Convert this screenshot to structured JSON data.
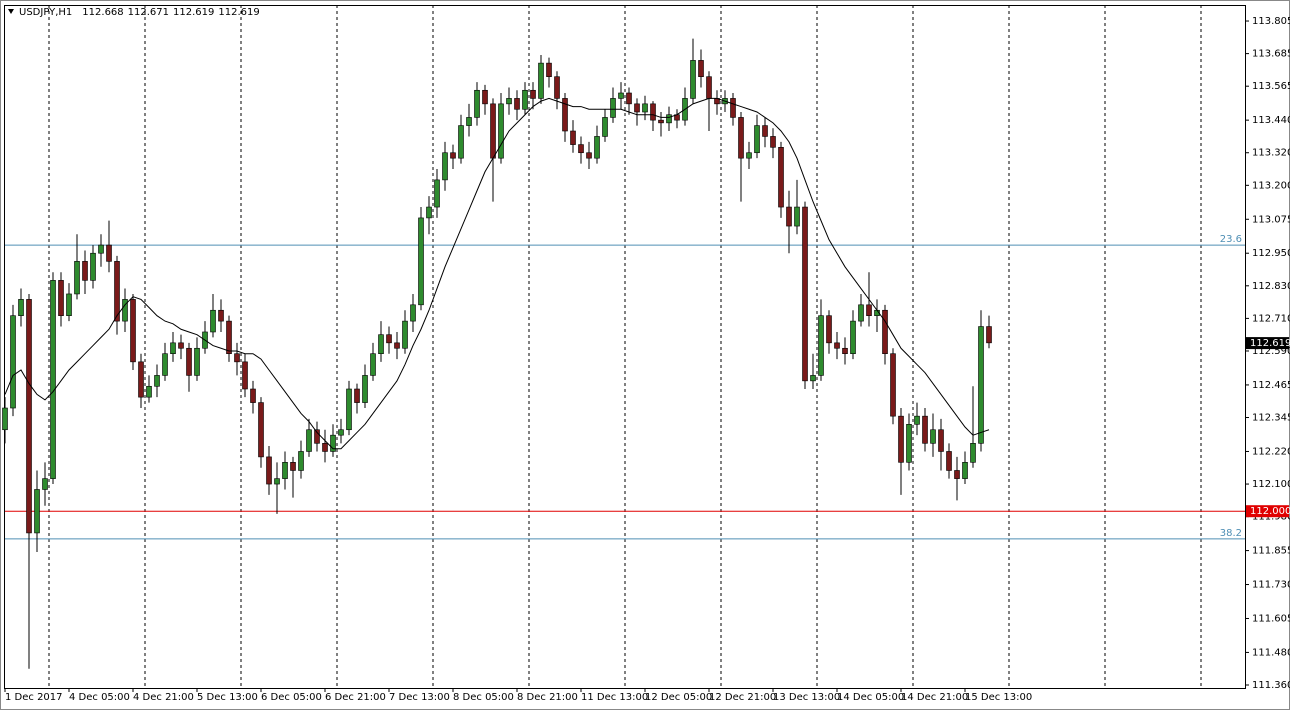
{
  "chart_data": {
    "type": "candlestick",
    "symbol": "USDJPY,H1",
    "header_values": [
      112.668,
      112.671,
      112.619,
      112.619
    ],
    "categories": [
      "1 Dec 2017",
      null,
      null,
      null,
      null,
      null,
      null,
      null,
      "4 Dec 05:00",
      null,
      null,
      null,
      null,
      null,
      null,
      null,
      "4 Dec 21:00",
      null,
      null,
      null,
      null,
      null,
      null,
      null,
      "5 Dec 13:00",
      null,
      null,
      null,
      null,
      null,
      null,
      null,
      "6 Dec 05:00",
      null,
      null,
      null,
      null,
      null,
      null,
      null,
      "6 Dec 21:00",
      null,
      null,
      null,
      null,
      null,
      null,
      null,
      "7 Dec 13:00",
      null,
      null,
      null,
      null,
      null,
      null,
      null,
      "8 Dec 05:00",
      null,
      null,
      null,
      null,
      null,
      null,
      null,
      "8 Dec 21:00",
      null,
      null,
      null,
      null,
      null,
      null,
      null,
      "11 Dec 13:00",
      null,
      null,
      null,
      null,
      null,
      null,
      null,
      "12 Dec 05:00",
      null,
      null,
      null,
      null,
      null,
      null,
      null,
      "12 Dec 21:00",
      null,
      null,
      null,
      null,
      null,
      null,
      null,
      "13 Dec 13:00",
      null,
      null,
      null,
      null,
      null,
      null,
      null,
      "14 Dec 05:00",
      null,
      null,
      null,
      null,
      null,
      null,
      null,
      "14 Dec 21:00",
      null,
      null,
      null,
      null,
      null,
      null,
      null,
      "15 Dec 13:00",
      null,
      null,
      null
    ],
    "ohlc": [
      [
        112.3,
        112.42,
        112.25,
        112.38
      ],
      [
        112.38,
        112.76,
        112.35,
        112.72
      ],
      [
        112.72,
        112.82,
        112.68,
        112.78
      ],
      [
        112.78,
        112.8,
        111.42,
        111.92
      ],
      [
        111.92,
        112.15,
        111.85,
        112.08
      ],
      [
        112.08,
        112.18,
        112.02,
        112.12
      ],
      [
        112.12,
        112.88,
        112.1,
        112.85
      ],
      [
        112.85,
        112.88,
        112.68,
        112.72
      ],
      [
        112.72,
        112.84,
        112.7,
        112.8
      ],
      [
        112.8,
        113.02,
        112.78,
        112.92
      ],
      [
        112.92,
        112.96,
        112.8,
        112.85
      ],
      [
        112.85,
        112.98,
        112.82,
        112.95
      ],
      [
        112.95,
        113.02,
        112.9,
        112.98
      ],
      [
        112.98,
        113.07,
        112.88,
        112.92
      ],
      [
        112.92,
        112.94,
        112.65,
        112.7
      ],
      [
        112.7,
        112.82,
        112.66,
        112.78
      ],
      [
        112.78,
        112.8,
        112.52,
        112.55
      ],
      [
        112.55,
        112.58,
        112.38,
        112.42
      ],
      [
        112.42,
        112.5,
        112.4,
        112.46
      ],
      [
        112.46,
        112.54,
        112.42,
        112.5
      ],
      [
        112.5,
        112.62,
        112.48,
        112.58
      ],
      [
        112.58,
        112.66,
        112.55,
        112.62
      ],
      [
        112.62,
        112.65,
        112.56,
        112.6
      ],
      [
        112.6,
        112.62,
        112.44,
        112.5
      ],
      [
        112.5,
        112.64,
        112.48,
        112.6
      ],
      [
        112.6,
        112.7,
        112.58,
        112.66
      ],
      [
        112.66,
        112.8,
        112.64,
        112.74
      ],
      [
        112.74,
        112.78,
        112.66,
        112.7
      ],
      [
        112.7,
        112.72,
        112.55,
        112.58
      ],
      [
        112.58,
        112.62,
        112.5,
        112.55
      ],
      [
        112.55,
        112.58,
        112.42,
        112.45
      ],
      [
        112.45,
        112.48,
        112.36,
        112.4
      ],
      [
        112.4,
        112.42,
        112.16,
        112.2
      ],
      [
        112.2,
        112.24,
        112.06,
        112.1
      ],
      [
        112.1,
        112.18,
        111.99,
        112.12
      ],
      [
        112.12,
        112.22,
        112.08,
        112.18
      ],
      [
        112.18,
        112.2,
        112.05,
        112.15
      ],
      [
        112.15,
        112.26,
        112.12,
        112.22
      ],
      [
        112.22,
        112.34,
        112.2,
        112.3
      ],
      [
        112.3,
        112.33,
        112.22,
        112.25
      ],
      [
        112.25,
        112.3,
        112.18,
        112.22
      ],
      [
        112.22,
        112.32,
        112.2,
        112.28
      ],
      [
        112.28,
        112.34,
        112.25,
        112.3
      ],
      [
        112.3,
        112.48,
        112.28,
        112.45
      ],
      [
        112.45,
        112.47,
        112.36,
        112.4
      ],
      [
        112.4,
        112.54,
        112.38,
        112.5
      ],
      [
        112.5,
        112.62,
        112.48,
        112.58
      ],
      [
        112.58,
        112.7,
        112.55,
        112.65
      ],
      [
        112.65,
        112.68,
        112.58,
        112.62
      ],
      [
        112.62,
        112.66,
        112.56,
        112.6
      ],
      [
        112.6,
        112.74,
        112.58,
        112.7
      ],
      [
        112.7,
        112.8,
        112.66,
        112.76
      ],
      [
        112.76,
        113.12,
        112.74,
        113.08
      ],
      [
        113.08,
        113.16,
        113.02,
        113.12
      ],
      [
        113.12,
        113.26,
        113.08,
        113.22
      ],
      [
        113.22,
        113.36,
        113.18,
        113.32
      ],
      [
        113.32,
        113.35,
        113.26,
        113.3
      ],
      [
        113.3,
        113.46,
        113.28,
        113.42
      ],
      [
        113.42,
        113.5,
        113.38,
        113.45
      ],
      [
        113.45,
        113.58,
        113.42,
        113.55
      ],
      [
        113.55,
        113.57,
        113.46,
        113.5
      ],
      [
        113.5,
        113.52,
        113.14,
        113.3
      ],
      [
        113.3,
        113.54,
        113.28,
        113.5
      ],
      [
        113.5,
        113.56,
        113.46,
        113.52
      ],
      [
        113.52,
        113.55,
        113.44,
        113.48
      ],
      [
        113.48,
        113.58,
        113.46,
        113.55
      ],
      [
        113.55,
        113.58,
        113.48,
        113.52
      ],
      [
        113.52,
        113.68,
        113.5,
        113.65
      ],
      [
        113.65,
        113.67,
        113.56,
        113.6
      ],
      [
        113.6,
        113.62,
        113.48,
        113.52
      ],
      [
        113.52,
        113.54,
        113.36,
        113.4
      ],
      [
        113.4,
        113.44,
        113.32,
        113.35
      ],
      [
        113.35,
        113.38,
        113.28,
        113.32
      ],
      [
        113.32,
        113.36,
        113.26,
        113.3
      ],
      [
        113.3,
        113.42,
        113.28,
        113.38
      ],
      [
        113.38,
        113.48,
        113.36,
        113.45
      ],
      [
        113.45,
        113.56,
        113.43,
        113.52
      ],
      [
        113.52,
        113.58,
        113.48,
        113.54
      ],
      [
        113.54,
        113.56,
        113.46,
        113.5
      ],
      [
        113.5,
        113.52,
        113.42,
        113.47
      ],
      [
        113.47,
        113.53,
        113.44,
        113.5
      ],
      [
        113.5,
        113.51,
        113.4,
        113.44
      ],
      [
        113.44,
        113.47,
        113.38,
        113.43
      ],
      [
        113.43,
        113.49,
        113.4,
        113.46
      ],
      [
        113.46,
        113.48,
        113.41,
        113.44
      ],
      [
        113.44,
        113.56,
        113.42,
        113.52
      ],
      [
        113.52,
        113.74,
        113.5,
        113.66
      ],
      [
        113.66,
        113.7,
        113.56,
        113.6
      ],
      [
        113.6,
        113.62,
        113.4,
        113.52
      ],
      [
        113.52,
        113.55,
        113.46,
        113.5
      ],
      [
        113.5,
        113.55,
        113.47,
        113.52
      ],
      [
        113.52,
        113.54,
        113.42,
        113.45
      ],
      [
        113.45,
        113.47,
        113.14,
        113.3
      ],
      [
        113.3,
        113.36,
        113.26,
        113.32
      ],
      [
        113.32,
        113.46,
        113.3,
        113.42
      ],
      [
        113.42,
        113.45,
        113.34,
        113.38
      ],
      [
        113.38,
        113.41,
        113.3,
        113.34
      ],
      [
        113.34,
        113.36,
        113.08,
        113.12
      ],
      [
        113.12,
        113.18,
        112.95,
        113.05
      ],
      [
        113.05,
        113.22,
        113.02,
        113.12
      ],
      [
        113.12,
        113.14,
        112.45,
        112.48
      ],
      [
        112.48,
        112.58,
        112.45,
        112.5
      ],
      [
        112.5,
        112.78,
        112.48,
        112.72
      ],
      [
        112.72,
        112.74,
        112.58,
        112.62
      ],
      [
        112.62,
        112.66,
        112.56,
        112.6
      ],
      [
        112.6,
        112.64,
        112.54,
        112.58
      ],
      [
        112.58,
        112.74,
        112.56,
        112.7
      ],
      [
        112.7,
        112.8,
        112.68,
        112.76
      ],
      [
        112.76,
        112.88,
        112.68,
        112.72
      ],
      [
        112.72,
        112.78,
        112.66,
        112.74
      ],
      [
        112.74,
        112.76,
        112.54,
        112.58
      ],
      [
        112.58,
        112.6,
        112.32,
        112.35
      ],
      [
        112.35,
        112.38,
        112.06,
        112.18
      ],
      [
        112.18,
        112.36,
        112.15,
        112.32
      ],
      [
        112.32,
        112.4,
        112.28,
        112.35
      ],
      [
        112.35,
        112.38,
        112.22,
        112.25
      ],
      [
        112.25,
        112.36,
        112.2,
        112.3
      ],
      [
        112.3,
        112.34,
        112.15,
        112.22
      ],
      [
        112.22,
        112.25,
        112.12,
        112.15
      ],
      [
        112.15,
        112.2,
        112.04,
        112.12
      ],
      [
        112.12,
        112.22,
        112.1,
        112.18
      ],
      [
        112.18,
        112.46,
        112.16,
        112.25
      ],
      [
        112.25,
        112.74,
        112.22,
        112.68
      ],
      [
        112.68,
        112.72,
        112.6,
        112.62
      ]
    ],
    "ma": [
      112.43,
      112.5,
      112.52,
      112.47,
      112.43,
      112.41,
      112.44,
      112.48,
      112.52,
      112.55,
      112.58,
      112.61,
      112.64,
      112.67,
      112.72,
      112.76,
      112.79,
      112.78,
      112.75,
      112.72,
      112.7,
      112.69,
      112.67,
      112.66,
      112.65,
      112.63,
      112.61,
      112.6,
      112.59,
      112.59,
      112.58,
      112.58,
      112.56,
      112.52,
      112.48,
      112.44,
      112.4,
      112.36,
      112.33,
      112.29,
      112.26,
      112.23,
      112.23,
      112.26,
      112.29,
      112.32,
      112.36,
      112.4,
      112.44,
      112.48,
      112.54,
      112.61,
      112.67,
      112.74,
      112.82,
      112.9,
      112.97,
      113.04,
      113.11,
      113.18,
      113.25,
      113.3,
      113.35,
      113.4,
      113.43,
      113.46,
      113.49,
      113.51,
      113.52,
      113.51,
      113.5,
      113.49,
      113.49,
      113.48,
      113.48,
      113.48,
      113.48,
      113.48,
      113.47,
      113.46,
      113.46,
      113.46,
      113.45,
      113.45,
      113.46,
      113.48,
      113.5,
      113.51,
      113.52,
      113.52,
      113.51,
      113.5,
      113.49,
      113.48,
      113.47,
      113.45,
      113.43,
      113.4,
      113.36,
      113.3,
      113.22,
      113.14,
      113.07,
      113.0,
      112.95,
      112.9,
      112.86,
      112.82,
      112.78,
      112.74,
      112.7,
      112.65,
      112.6,
      112.57,
      112.54,
      112.51,
      112.47,
      112.43,
      112.39,
      112.35,
      112.31,
      112.28,
      112.29,
      112.3
    ],
    "bull_color": "#2e8b2e",
    "bear_color": "#7a1a1a",
    "wick_color": "#000000",
    "ma_color": "#000000",
    "ylim": [
      111.349,
      113.864
    ],
    "yticks": [
      113.805,
      113.685,
      113.565,
      {
        "value": 113.44,
        "label": "113.440"
      },
      {
        "value": 113.32,
        "label": "113.320"
      },
      {
        "value": 113.2,
        "label": "113.200"
      },
      113.075,
      {
        "value": 112.95,
        "label": "112.950"
      },
      {
        "value": 112.83,
        "label": "112.830"
      },
      {
        "value": 112.71,
        "label": "112.710"
      },
      {
        "value": 112.59,
        "label": "112.590"
      },
      112.465,
      112.345,
      {
        "value": 112.22,
        "label": "112.220"
      },
      {
        "value": 112.1,
        "label": "112.100"
      },
      {
        "value": 111.98,
        "label": "111.980"
      },
      111.855,
      {
        "value": 111.73,
        "label": "111.730"
      },
      111.605,
      {
        "value": 111.48,
        "label": "111.480"
      },
      {
        "value": 111.36,
        "label": "111.360"
      }
    ],
    "levels": [
      {
        "label": 23.6,
        "value": 112.98,
        "color": "#4f8fb5"
      },
      {
        "label": 38.2,
        "value": 111.898,
        "color": "#4f8fb5"
      }
    ],
    "price_line": {
      "value": 112,
      "label": "112.000",
      "color": "#e00000"
    },
    "last_price": 112.619
  }
}
